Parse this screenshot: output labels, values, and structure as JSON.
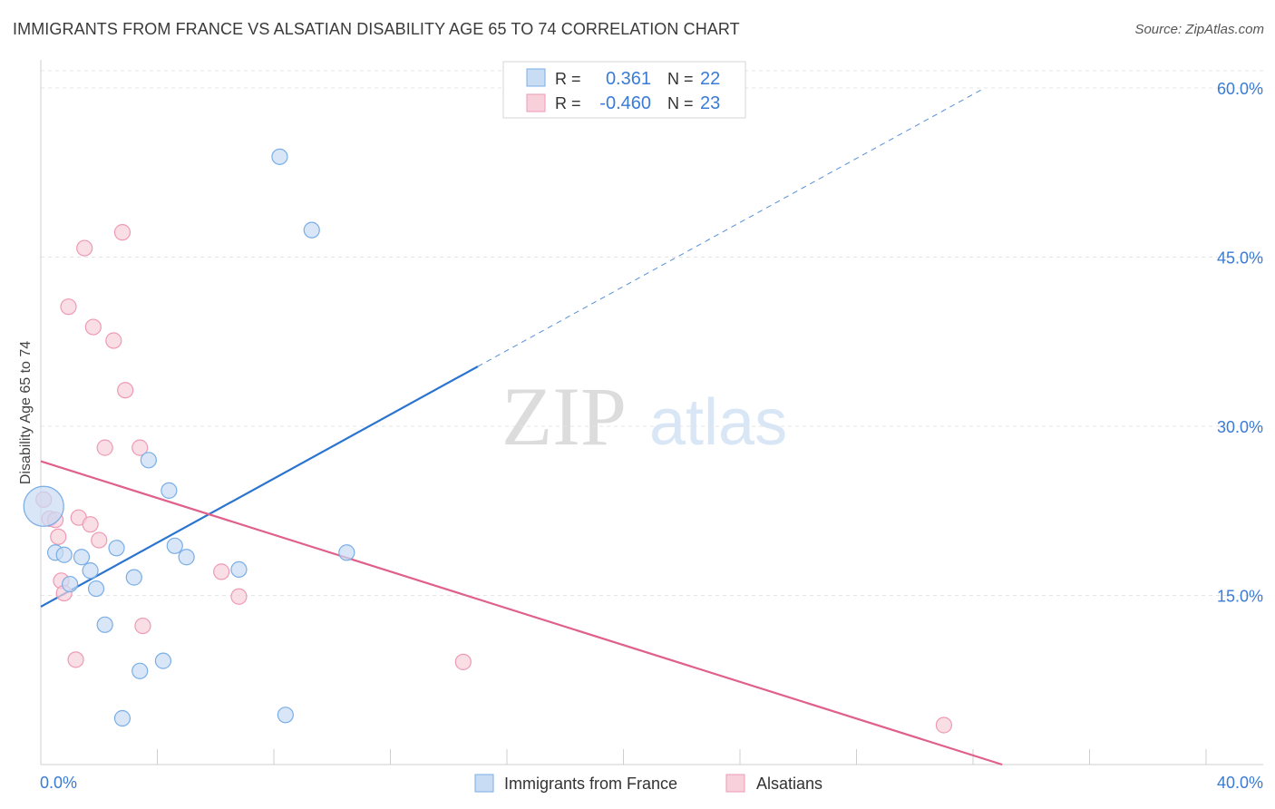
{
  "chart_data": {
    "type": "scatter",
    "title": "IMMIGRANTS FROM FRANCE VS ALSATIAN DISABILITY AGE 65 TO 74 CORRELATION CHART",
    "source": "Source: ZipAtlas.com",
    "watermark": {
      "zip": "ZIP",
      "atlas": "atlas"
    },
    "xlabel": "",
    "ylabel": "Disability Age 65 to 74",
    "xlim": [
      0,
      40
    ],
    "ylim": [
      0,
      60
    ],
    "x_tick_labels": {
      "min": "0.0%",
      "max": "40.0%"
    },
    "y_ticks": [
      15,
      30,
      45,
      60
    ],
    "y_tick_labels": [
      "15.0%",
      "30.0%",
      "45.0%",
      "60.0%"
    ],
    "grid": true,
    "legend_position": "top-center",
    "legend": [
      {
        "r_label": "R =",
        "r_value": "0.361",
        "n_label": "N =",
        "n_value": "22"
      },
      {
        "r_label": "R =",
        "r_value": "-0.460",
        "n_label": "N =",
        "n_value": "23"
      }
    ],
    "series": [
      {
        "name": "Immigrants from France",
        "color": "#7aaee6",
        "fill": "#c8dcf4",
        "line_color": "#2a74d0",
        "trend": {
          "x0": 0.0,
          "y0": 14.0,
          "x1": 15.0,
          "y1": 35.3,
          "x_dash_end": 32.4,
          "y_dash_end": 60.0
        },
        "points": [
          {
            "x": 0.1,
            "y": 22.9,
            "big": true
          },
          {
            "x": 0.5,
            "y": 18.8
          },
          {
            "x": 0.8,
            "y": 18.6
          },
          {
            "x": 1.0,
            "y": 16.0
          },
          {
            "x": 1.4,
            "y": 18.4
          },
          {
            "x": 1.7,
            "y": 17.2
          },
          {
            "x": 1.9,
            "y": 15.6
          },
          {
            "x": 2.2,
            "y": 12.4
          },
          {
            "x": 2.6,
            "y": 19.2
          },
          {
            "x": 2.8,
            "y": 4.1
          },
          {
            "x": 3.2,
            "y": 16.6
          },
          {
            "x": 3.4,
            "y": 8.3
          },
          {
            "x": 3.7,
            "y": 27.0
          },
          {
            "x": 4.2,
            "y": 9.2
          },
          {
            "x": 4.4,
            "y": 24.3
          },
          {
            "x": 4.6,
            "y": 19.4
          },
          {
            "x": 5.0,
            "y": 18.4
          },
          {
            "x": 6.8,
            "y": 17.3
          },
          {
            "x": 8.2,
            "y": 53.9
          },
          {
            "x": 8.4,
            "y": 4.4
          },
          {
            "x": 9.3,
            "y": 47.4
          },
          {
            "x": 10.5,
            "y": 18.8
          }
        ]
      },
      {
        "name": "Alsatians",
        "color": "#ee9ab4",
        "fill": "#f8d0dc",
        "line_color": "#e0608c",
        "trend": {
          "x0": 0.0,
          "y0": 26.9,
          "x1": 33.0,
          "y1": 0.0
        },
        "points": [
          {
            "x": 0.1,
            "y": 23.5
          },
          {
            "x": 0.3,
            "y": 21.8
          },
          {
            "x": 0.5,
            "y": 21.7
          },
          {
            "x": 0.6,
            "y": 20.2
          },
          {
            "x": 0.7,
            "y": 16.3
          },
          {
            "x": 0.8,
            "y": 15.2
          },
          {
            "x": 0.95,
            "y": 40.6
          },
          {
            "x": 1.2,
            "y": 9.3
          },
          {
            "x": 1.3,
            "y": 21.9
          },
          {
            "x": 1.5,
            "y": 45.8
          },
          {
            "x": 1.7,
            "y": 21.3
          },
          {
            "x": 1.8,
            "y": 38.8
          },
          {
            "x": 2.0,
            "y": 19.9
          },
          {
            "x": 2.2,
            "y": 28.1
          },
          {
            "x": 2.5,
            "y": 37.6
          },
          {
            "x": 2.8,
            "y": 47.2
          },
          {
            "x": 2.9,
            "y": 33.2
          },
          {
            "x": 3.4,
            "y": 28.1
          },
          {
            "x": 3.5,
            "y": 12.3
          },
          {
            "x": 6.2,
            "y": 17.1
          },
          {
            "x": 6.8,
            "y": 14.9
          },
          {
            "x": 14.5,
            "y": 9.1
          },
          {
            "x": 31.0,
            "y": 3.5
          }
        ]
      }
    ]
  }
}
